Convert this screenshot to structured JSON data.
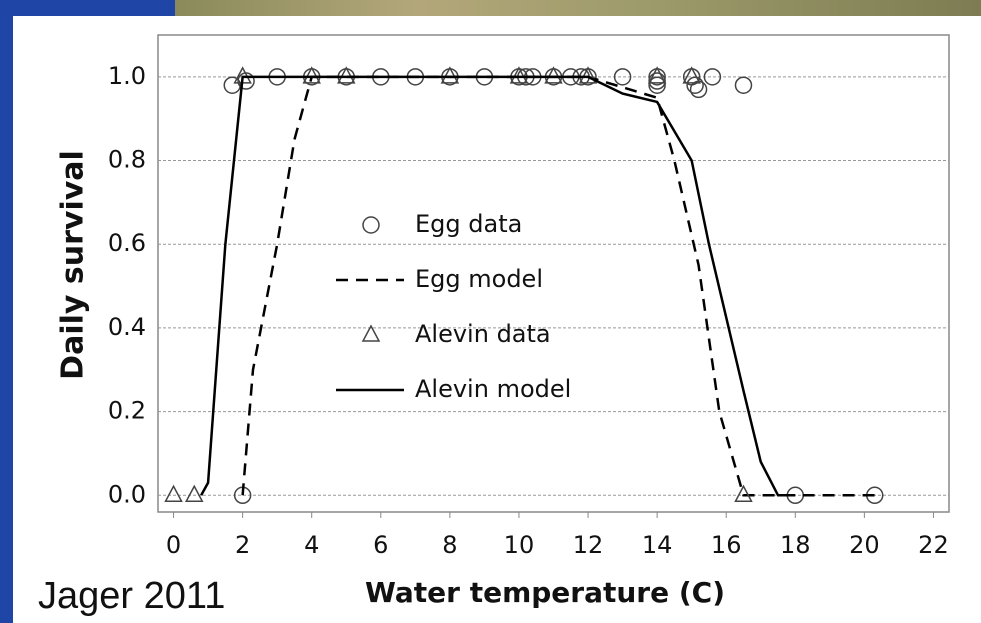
{
  "chart_data": {
    "type": "line",
    "xlabel": "Water temperature (C)",
    "ylabel": "Daily survival",
    "xlim": [
      -0.45,
      22.45
    ],
    "ylim": [
      -0.04,
      1.1
    ],
    "xticks": [
      0,
      2,
      4,
      6,
      8,
      10,
      12,
      14,
      16,
      18,
      20,
      22
    ],
    "yticks": [
      {
        "value": 0,
        "label": "0.0"
      },
      {
        "value": 0.2,
        "label": "0.2"
      },
      {
        "value": 0.4,
        "label": "0.4"
      },
      {
        "value": 0.6,
        "label": "0.6"
      },
      {
        "value": 0.8,
        "label": "0.8"
      },
      {
        "value": 1,
        "label": "1.0"
      }
    ],
    "grid": true,
    "series": [
      {
        "name": "Egg data",
        "color": "#444444",
        "marker": "circle",
        "x": [
          1.7,
          2.1,
          2,
          3,
          4,
          5,
          6,
          7,
          8,
          9,
          10,
          10.2,
          10.4,
          11,
          11.5,
          11.8,
          12,
          13,
          14,
          14,
          14,
          15,
          15.1,
          15.2,
          15.6,
          16.5,
          18,
          20.3
        ],
        "values": [
          0.98,
          0.99,
          0,
          1,
          1,
          1,
          1,
          1,
          1,
          1,
          1,
          1,
          1,
          1,
          1,
          1,
          1,
          1,
          1,
          0.98,
          0.99,
          1,
          0.98,
          0.97,
          1,
          0.98,
          0,
          0
        ]
      },
      {
        "name": "Egg model",
        "color": "#000000",
        "dash": true,
        "x": [
          2,
          2.3,
          3,
          3.5,
          4,
          12,
          14,
          14.5,
          15.2,
          15.8,
          16.5,
          20.3
        ],
        "values": [
          0,
          0.3,
          0.6,
          0.85,
          1,
          1,
          0.95,
          0.8,
          0.55,
          0.2,
          0,
          0
        ]
      },
      {
        "name": "Alevin data",
        "color": "#444444",
        "marker": "triangle",
        "x": [
          0,
          0.6,
          2,
          4,
          5,
          8,
          10,
          11,
          12,
          14,
          15,
          16.5
        ],
        "values": [
          0,
          0,
          1,
          1,
          1,
          1,
          1,
          1,
          1,
          1,
          1,
          0
        ]
      },
      {
        "name": "Alevin model",
        "color": "#000000",
        "dash": false,
        "x": [
          0.8,
          1,
          1.5,
          2,
          12,
          13,
          14,
          15,
          15.5,
          16.5,
          17,
          17.5,
          18
        ],
        "values": [
          0,
          0.03,
          0.6,
          1,
          1,
          0.96,
          0.94,
          0.8,
          0.6,
          0.25,
          0.08,
          0,
          0
        ]
      }
    ],
    "note": "Jager 2011"
  }
}
